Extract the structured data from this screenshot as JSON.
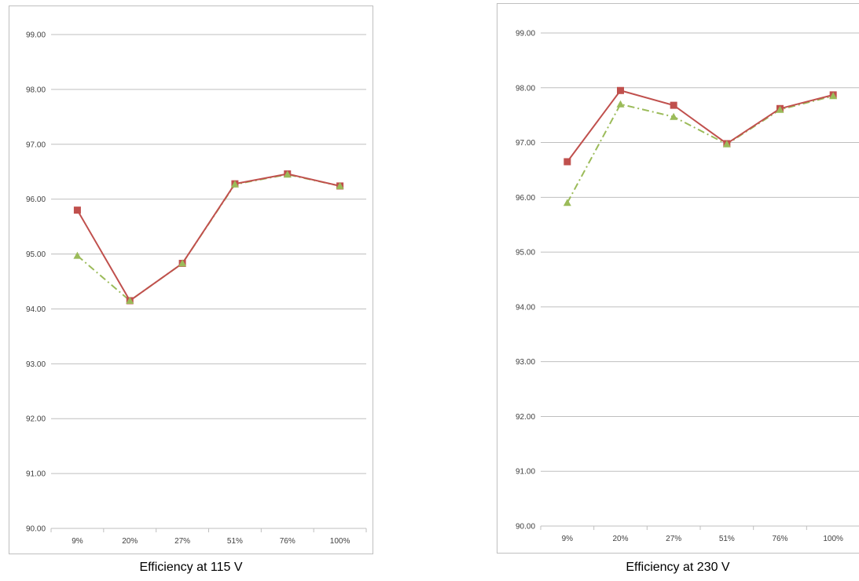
{
  "chart_data": [
    {
      "type": "line",
      "title": "",
      "caption": "Efficiency at 115 V",
      "xlabel": "",
      "ylabel": "",
      "categories": [
        "9%",
        "20%",
        "27%",
        "51%",
        "76%",
        "100%"
      ],
      "ylim": [
        90,
        99
      ],
      "yticks": [
        "90.00",
        "91.00",
        "92.00",
        "93.00",
        "94.00",
        "95.00",
        "96.00",
        "97.00",
        "98.00",
        "99.00"
      ],
      "grid": true,
      "legend": "none",
      "series": [
        {
          "values": [
            95.8,
            94.15,
            94.83,
            96.28,
            96.46,
            96.24
          ],
          "color": "#c0504d",
          "marker": "square",
          "style": "solid"
        },
        {
          "values": [
            94.97,
            94.15,
            94.83,
            96.27,
            96.45,
            96.24
          ],
          "color": "#9bbb59",
          "marker": "triangle",
          "style": "dash-dot"
        }
      ]
    },
    {
      "type": "line",
      "title": "",
      "caption": "Efficiency at 230 V",
      "xlabel": "",
      "ylabel": "",
      "categories": [
        "9%",
        "20%",
        "27%",
        "51%",
        "76%",
        "100%"
      ],
      "ylim": [
        90,
        99
      ],
      "yticks": [
        "90.00",
        "91.00",
        "92.00",
        "93.00",
        "94.00",
        "95.00",
        "96.00",
        "97.00",
        "98.00",
        "99.00"
      ],
      "grid": true,
      "legend": "none",
      "series": [
        {
          "values": [
            96.65,
            97.95,
            97.68,
            96.98,
            97.62,
            97.87
          ],
          "color": "#c0504d",
          "marker": "square",
          "style": "solid"
        },
        {
          "values": [
            95.9,
            97.7,
            97.47,
            96.97,
            97.6,
            97.85
          ],
          "color": "#9bbb59",
          "marker": "triangle",
          "style": "dash-dot"
        }
      ]
    }
  ]
}
